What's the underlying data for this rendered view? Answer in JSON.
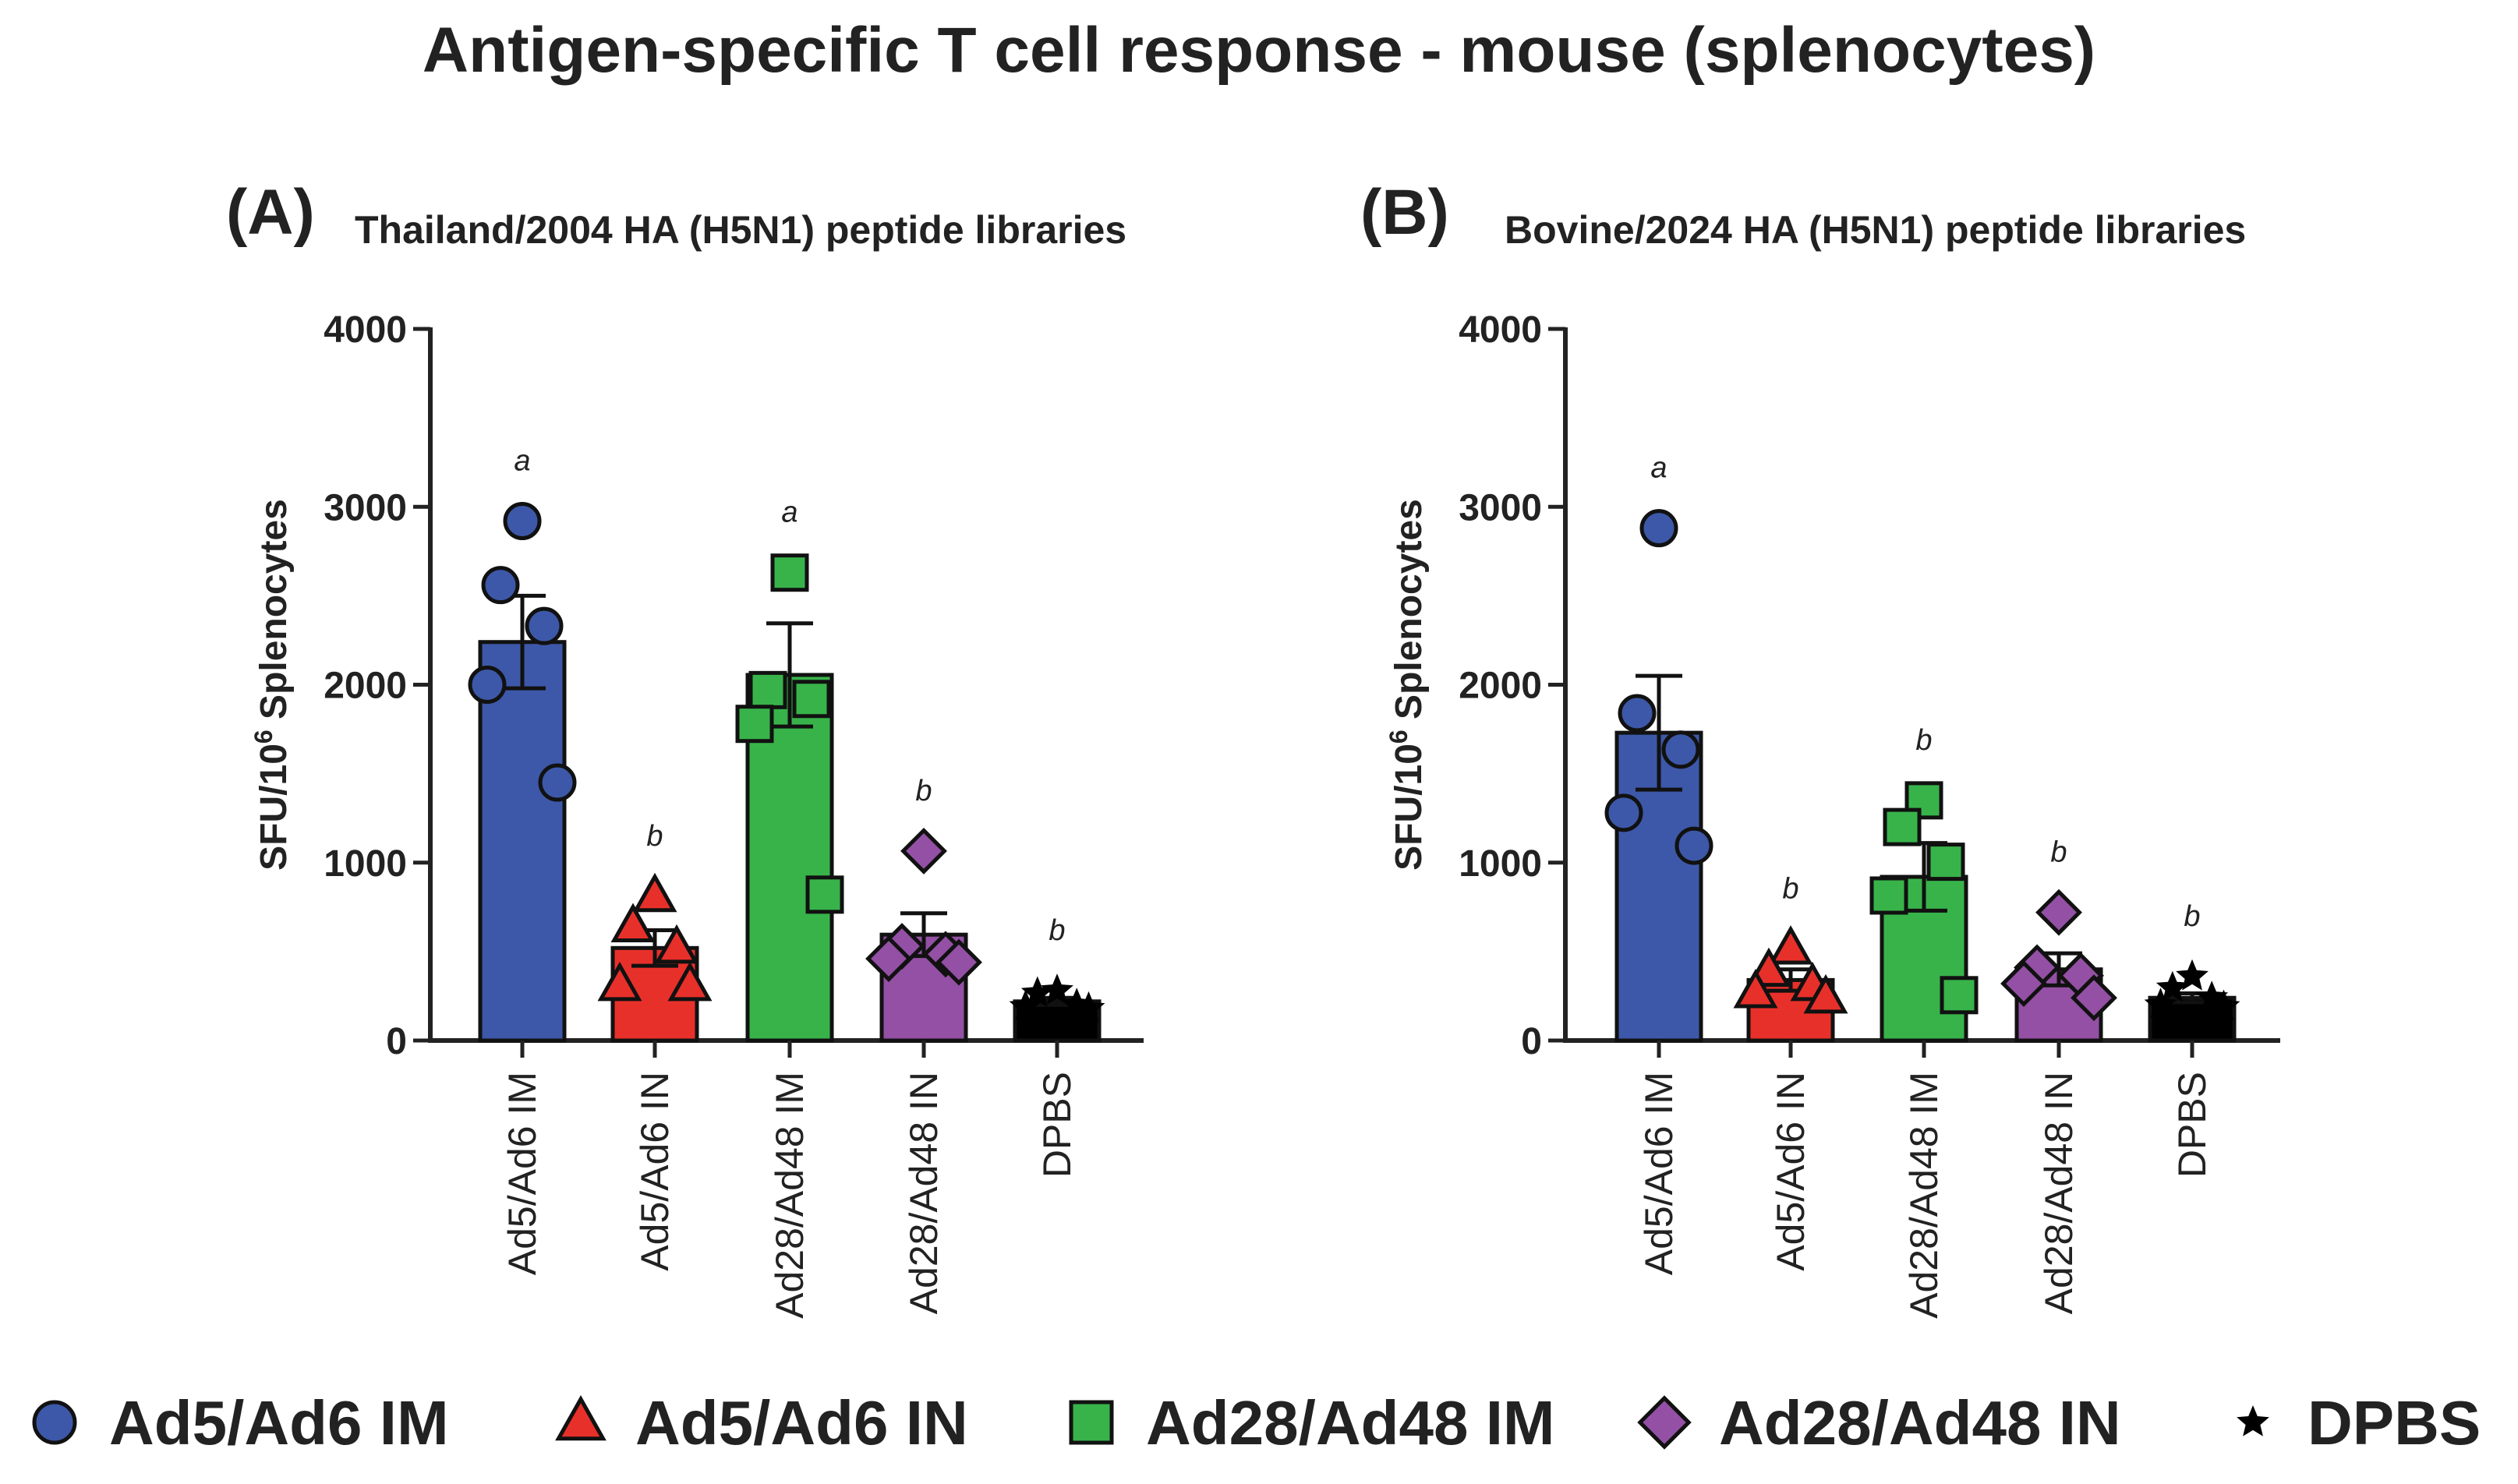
{
  "chart_data": {
    "title": "Antigen-specific T cell response - mouse (splenocytes)",
    "type": "bar",
    "categories": [
      "Ad5/Ad6 IM",
      "Ad5/Ad6 IN",
      "Ad28/Ad48 IM",
      "Ad28/Ad48 IN",
      "DPBS"
    ],
    "colors": [
      "#3d58a8",
      "#e8302a",
      "#38b34a",
      "#9350a4",
      "#000000"
    ],
    "markers": [
      "circle",
      "triangle",
      "square",
      "diamond",
      "star"
    ],
    "legend": {
      "placement": "bottom",
      "entries": [
        "Ad5/Ad6 IM",
        "Ad5/Ad6 IN",
        "Ad28/Ad48 IM",
        "Ad28/Ad48 IN",
        "DPBS"
      ]
    },
    "panels": [
      {
        "label": "(A)",
        "title": "Thailand/2004 HA (H5N1) peptide libraries",
        "ylabel": "SFU/10",
        "ylabel_sup": "6",
        "ylabel_suffix": " Splenocytes",
        "ylim": [
          0,
          4000
        ],
        "yticks": [
          "0",
          "1000",
          "2000",
          "3000",
          "4000"
        ],
        "means": [
          2240,
          520,
          2055,
          595,
          220
        ],
        "sem": [
          260,
          100,
          290,
          120,
          20
        ],
        "significance": [
          "a",
          "b",
          "a",
          "b",
          "b"
        ],
        "points": [
          [
            2920,
            2560,
            2330,
            2000,
            1450
          ],
          [
            810,
            640,
            520,
            310,
            310
          ],
          [
            2630,
            1970,
            1920,
            1780,
            820
          ],
          [
            1065,
            530,
            485,
            460,
            440
          ],
          [
            280,
            265,
            200,
            190,
            180
          ]
        ]
      },
      {
        "label": "(B)",
        "title": "Bovine/2024 HA (H5N1) peptide libraries",
        "ylabel": "SFU/10",
        "ylabel_sup": "6",
        "ylabel_suffix": " Splenocytes",
        "ylim": [
          0,
          4000
        ],
        "yticks": [
          "0",
          "1000",
          "2000",
          "3000",
          "4000"
        ],
        "means": [
          1730,
          340,
          920,
          400,
          240
        ],
        "sem": [
          320,
          60,
          190,
          90,
          25
        ],
        "significance": [
          "a",
          "b",
          "b",
          "b",
          "b"
        ],
        "points": [
          [
            2880,
            1840,
            1635,
            1280,
            1095
          ],
          [
            515,
            390,
            310,
            270,
            240
          ],
          [
            1350,
            1200,
            1005,
            815,
            255
          ],
          [
            720,
            410,
            365,
            320,
            240
          ],
          [
            360,
            295,
            240,
            200,
            190
          ]
        ]
      }
    ]
  }
}
